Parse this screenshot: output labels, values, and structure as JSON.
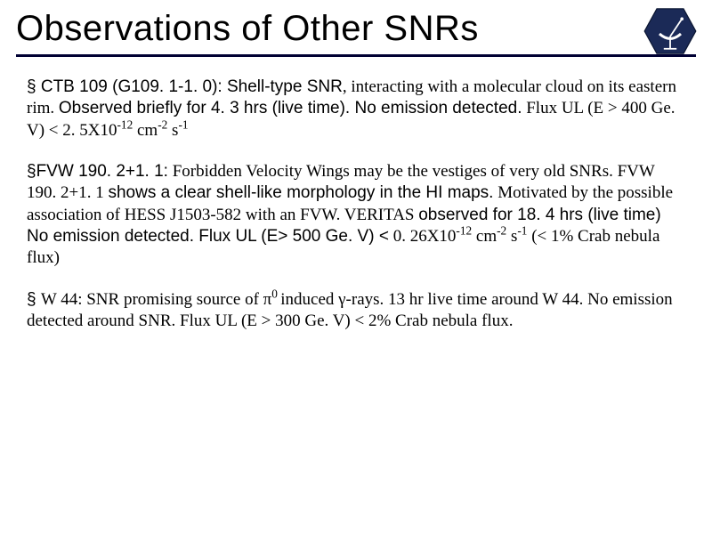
{
  "header": {
    "title": "Observations of Other SNRs",
    "rule_color": "#000033",
    "logo": {
      "shape": "hexagon",
      "fill": "#1b2a57",
      "dish_color": "#ffffff",
      "label": "VERITAS"
    }
  },
  "bullets": [
    {
      "name": "ctb109",
      "runs": [
        {
          "style": "sans",
          "text": "§ "
        },
        {
          "style": "sans",
          "text": "CTB 109 (G109. 1-1. 0): Shell-type SNR"
        },
        {
          "style": "serif",
          "text": ", interacting with a molecular cloud on its eastern rim. "
        },
        {
          "style": "sans",
          "text": "Observed briefly for 4. 3 hrs (live time). No emission detected."
        },
        {
          "style": "serif",
          "text": " Flux UL (E > 400 Ge. V) < 2. 5X10"
        },
        {
          "style": "serif",
          "sup": true,
          "text": "-12"
        },
        {
          "style": "serif",
          "text": " cm"
        },
        {
          "style": "serif",
          "sup": true,
          "text": "-2"
        },
        {
          "style": "serif",
          "text": " s"
        },
        {
          "style": "serif",
          "sup": true,
          "text": "-1"
        }
      ]
    },
    {
      "name": "fvw190",
      "runs": [
        {
          "style": "sans",
          "text": "§"
        },
        {
          "style": "sans",
          "text": "FVW 190. 2+1. 1:"
        },
        {
          "style": "serif",
          "text": " Forbidden Velocity Wings may be the vestiges of very old SNRs. FVW 190. 2+1. 1 "
        },
        {
          "style": "sans",
          "text": "shows a clear shell-like morphology in the HI maps."
        },
        {
          "style": "serif",
          "text": " Motivated by the possible association of HESS J1503-582 with an FVW. VERITAS "
        },
        {
          "style": "sans",
          "text": "observed for 18. 4 hrs (live time) No emission detected. Flux UL (E> 500 Ge. V) <"
        },
        {
          "style": "serif",
          "text": " 0. 26X10"
        },
        {
          "style": "serif",
          "sup": true,
          "text": "-12"
        },
        {
          "style": "serif",
          "text": " cm"
        },
        {
          "style": "serif",
          "sup": true,
          "text": "-2"
        },
        {
          "style": "serif",
          "text": " s"
        },
        {
          "style": "serif",
          "sup": true,
          "text": "-1"
        },
        {
          "style": "serif",
          "text": " (< 1% Crab nebula flux)"
        }
      ]
    },
    {
      "name": "w44",
      "runs": [
        {
          "style": "sans",
          "text": "§ "
        },
        {
          "style": "serif",
          "text": "W 44: SNR promising source of π"
        },
        {
          "style": "serif",
          "sup": true,
          "text": "0 "
        },
        {
          "style": "serif",
          "text": "induced γ-rays. 13 hr live time around W 44.  No emission detected around SNR. Flux UL (E > 300 Ge. V) < 2% Crab nebula flux."
        }
      ]
    }
  ],
  "typography": {
    "title_fontsize": 40,
    "body_fontsize": 19,
    "line_height": 1.28,
    "text_color": "#000000",
    "background_color": "#ffffff"
  }
}
